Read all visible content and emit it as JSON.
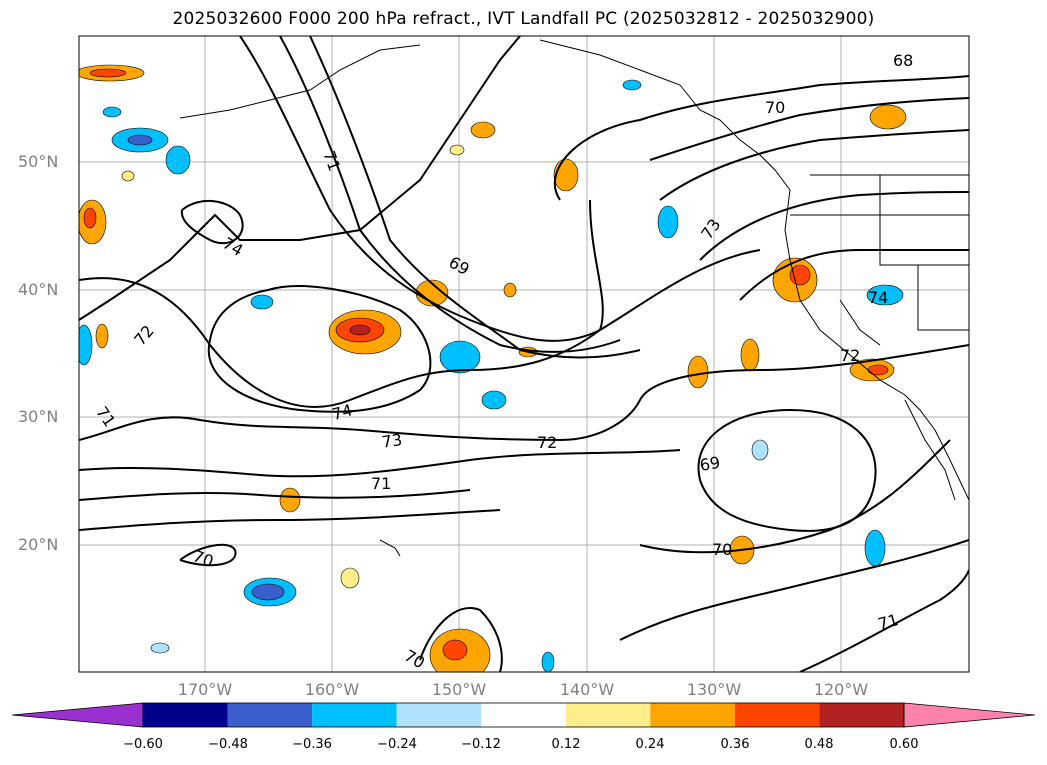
{
  "title": "2025032600 F000 200 hPa refract., IVT Landfall PC (2025032812 - 2025032900)",
  "lat_labels": [
    "50°N",
    "40°N",
    "30°N",
    "20°N"
  ],
  "lon_labels": [
    "170°W",
    "160°W",
    "150°W",
    "140°W",
    "130°W",
    "120°W"
  ],
  "contour_labels": [
    "68",
    "70",
    "71",
    "73",
    "74",
    "69",
    "72",
    "74",
    "72",
    "71",
    "74",
    "73",
    "72",
    "71",
    "69",
    "70",
    "70",
    "70",
    "71"
  ],
  "colorbar": {
    "ticks": [
      "−0.60",
      "−0.48",
      "−0.36",
      "−0.24",
      "−0.12",
      "0.12",
      "0.24",
      "0.36",
      "0.48",
      "0.60"
    ],
    "colors": [
      "#9b30d0",
      "#00008b",
      "#3a5fcd",
      "#00bfff",
      "#b0e2ff",
      "#ffffff",
      "#ffec8b",
      "#ffa500",
      "#ff4500",
      "#b22222",
      "#ff82ab"
    ]
  }
}
